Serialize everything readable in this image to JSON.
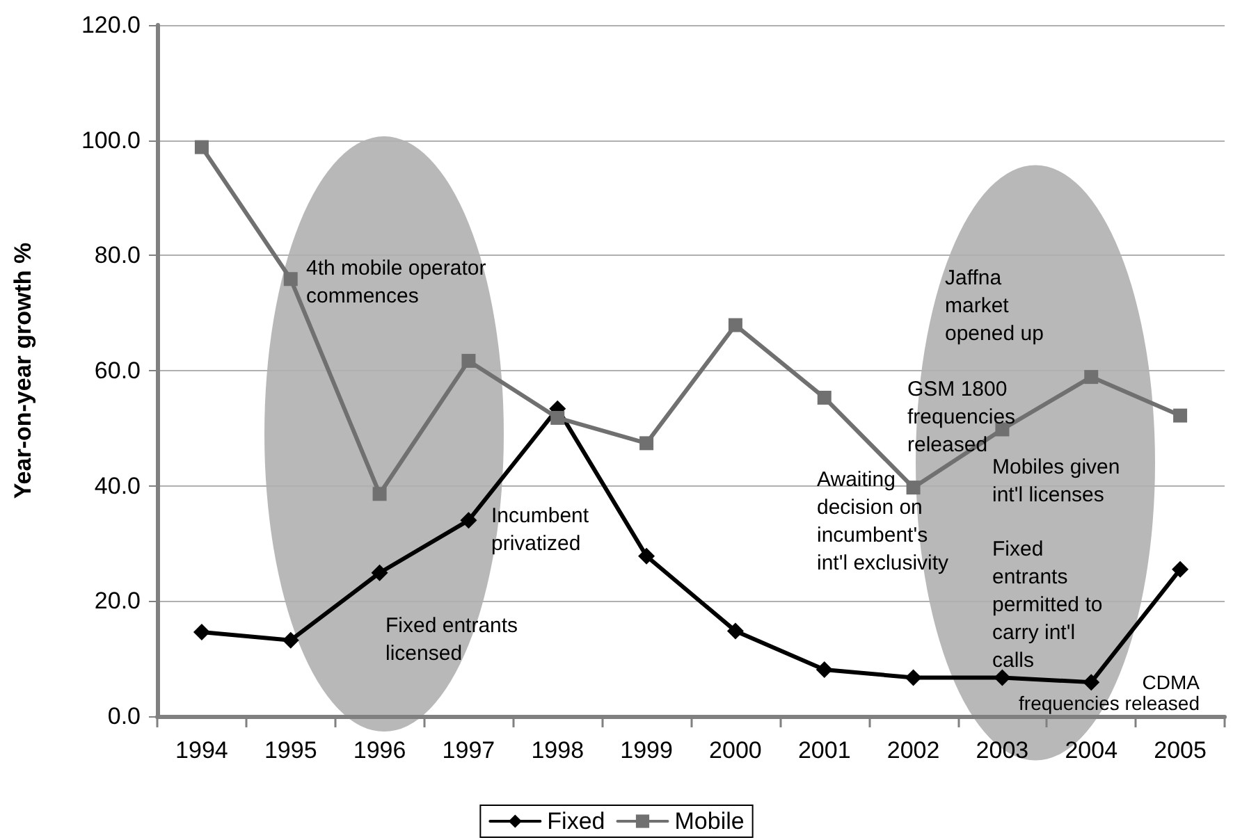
{
  "chart_data": {
    "type": "line",
    "ylabel": "Year-on-year growth %",
    "categories": [
      "1994",
      "1995",
      "1996",
      "1997",
      "1998",
      "1999",
      "2000",
      "2001",
      "2002",
      "2003",
      "2004",
      "2005"
    ],
    "series": [
      {
        "name": "Fixed",
        "color": "#000000",
        "marker": "diamond",
        "values": [
          14.6,
          13.2,
          24.9,
          34.0,
          53.4,
          27.8,
          14.8,
          8.1,
          6.7,
          6.7,
          5.9,
          25.5
        ]
      },
      {
        "name": "Mobile",
        "color": "#707070",
        "marker": "square",
        "values": [
          98.8,
          75.9,
          38.6,
          61.7,
          51.8,
          47.4,
          67.9,
          55.3,
          39.7,
          49.8,
          58.9,
          52.2
        ]
      }
    ],
    "ylim": [
      0,
      120
    ],
    "yticks": [
      {
        "value": 0,
        "label": "0.0"
      },
      {
        "value": 20,
        "label": "20.0"
      },
      {
        "value": 40,
        "label": "40.0"
      },
      {
        "value": 60,
        "label": "60.0"
      },
      {
        "value": 80,
        "label": "80.0"
      },
      {
        "value": 100,
        "label": "100.0"
      },
      {
        "value": 120,
        "label": "120.0"
      }
    ],
    "grid": "y",
    "legend": "bottom",
    "annotations": [
      "4th mobile operator\ncommences",
      "Fixed entrants\nlicensed",
      "Incumbent\nprivatized",
      "Awaiting\ndecision on\nincumbent's\nint'l exclusivity",
      "Jaffna\nmarket\nopened up",
      "GSM 1800\nfrequencies\nreleased",
      "Mobiles given\nint'l licenses",
      "Fixed\nentrants\npermitted to\ncarry int'l\ncalls",
      "CDMA\nfrequencies released"
    ]
  }
}
